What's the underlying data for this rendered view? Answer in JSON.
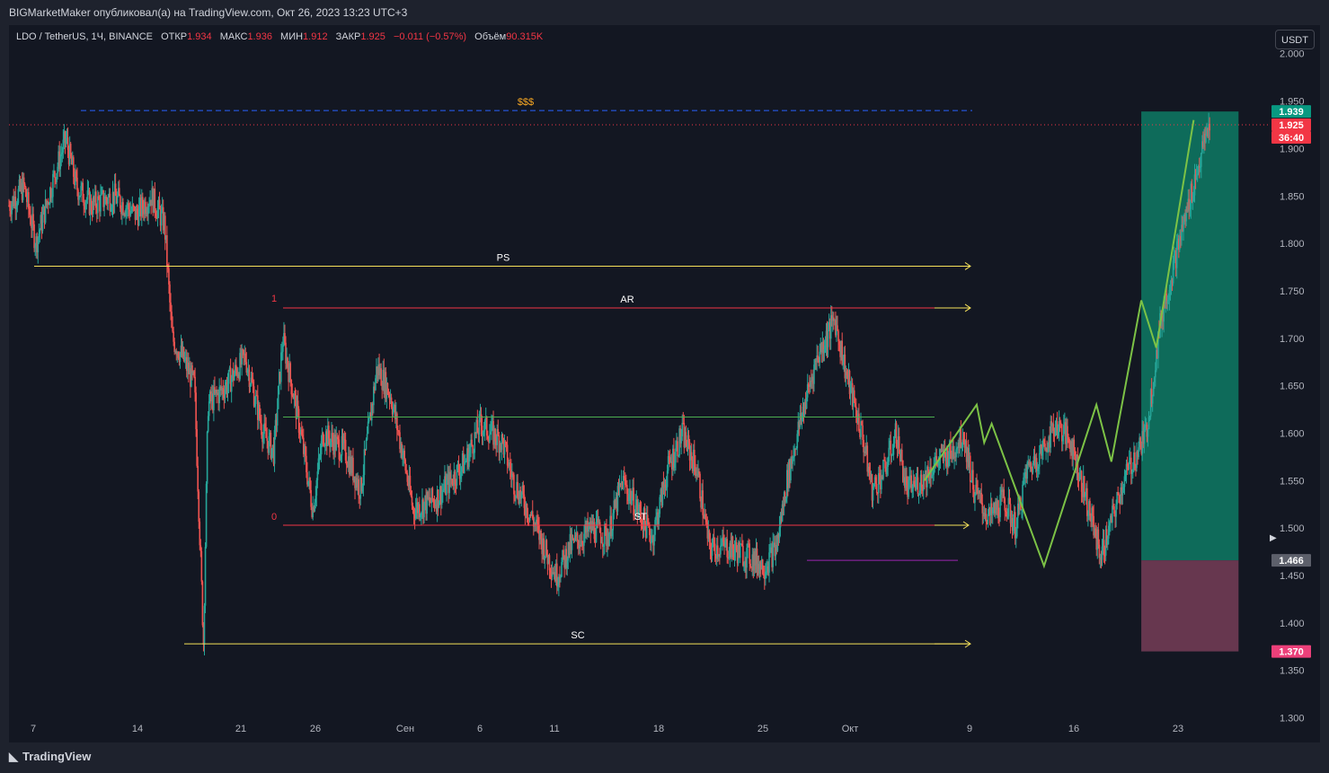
{
  "header": {
    "author_line": "BIGMarketMaker опубликовал(а) на TradingView.com, Окт 26, 2023 13:23 UTC+3"
  },
  "legend": {
    "symbol": "LDO / TetherUS, 1Ч, BINANCE",
    "open_label": "ОТКР",
    "open_value": "1.934",
    "high_label": "МАКС",
    "high_value": "1.936",
    "low_label": "МИН",
    "low_value": "1.912",
    "close_label": "ЗАКР",
    "close_value": "1.925",
    "change": "−0.011 (−0.57%)",
    "volume_label": "Объём",
    "volume_value": "90.315K"
  },
  "currency_button": "USDT",
  "branding": "TradingView",
  "colors": {
    "background": "#131722",
    "up": "#26a69a",
    "down": "#ef5350",
    "yellow_level": "#f5e15a",
    "red_level": "#f23645",
    "green_level": "#4caf50",
    "blue_level": "#2962ff",
    "purple_level": "#9c27b0",
    "projection": "#7cc246",
    "target_zone": "#0e7a64",
    "stop_zone": "#6b3952"
  },
  "chart_data": {
    "type": "candlestick",
    "y_axis": {
      "ticks": [
        "2.000",
        "1.950",
        "1.900",
        "1.850",
        "1.800",
        "1.750",
        "1.700",
        "1.650",
        "1.600",
        "1.550",
        "1.500",
        "1.450",
        "1.400",
        "1.350",
        "1.300"
      ],
      "range": [
        1.275,
        2.03
      ]
    },
    "x_axis": {
      "ticks": [
        "7",
        "14",
        "21",
        "26",
        "Сен",
        "6",
        "11",
        "18",
        "25",
        "Окт",
        "9",
        "16",
        "23"
      ]
    },
    "price_path": [
      {
        "day": 0.0,
        "price": 1.84
      },
      {
        "day": 1.0,
        "price": 1.86
      },
      {
        "day": 1.8,
        "price": 1.8
      },
      {
        "day": 3.0,
        "price": 1.87
      },
      {
        "day": 3.8,
        "price": 1.91
      },
      {
        "day": 4.5,
        "price": 1.86
      },
      {
        "day": 5.5,
        "price": 1.84
      },
      {
        "day": 7.0,
        "price": 1.85
      },
      {
        "day": 8.5,
        "price": 1.83
      },
      {
        "day": 9.5,
        "price": 1.85
      },
      {
        "day": 10.4,
        "price": 1.82
      },
      {
        "day": 10.9,
        "price": 1.7
      },
      {
        "day": 11.6,
        "price": 1.68
      },
      {
        "day": 12.4,
        "price": 1.65
      },
      {
        "day": 13.0,
        "price": 1.38
      },
      {
        "day": 13.3,
        "price": 1.63
      },
      {
        "day": 14.5,
        "price": 1.65
      },
      {
        "day": 15.8,
        "price": 1.68
      },
      {
        "day": 17.0,
        "price": 1.6
      },
      {
        "day": 17.7,
        "price": 1.58
      },
      {
        "day": 18.3,
        "price": 1.7
      },
      {
        "day": 19.5,
        "price": 1.6
      },
      {
        "day": 20.3,
        "price": 1.52
      },
      {
        "day": 21.0,
        "price": 1.6
      },
      {
        "day": 22.5,
        "price": 1.58
      },
      {
        "day": 23.5,
        "price": 1.54
      },
      {
        "day": 24.6,
        "price": 1.67
      },
      {
        "day": 25.5,
        "price": 1.64
      },
      {
        "day": 26.3,
        "price": 1.58
      },
      {
        "day": 27.0,
        "price": 1.52
      },
      {
        "day": 28.5,
        "price": 1.53
      },
      {
        "day": 30.5,
        "price": 1.57
      },
      {
        "day": 31.5,
        "price": 1.61
      },
      {
        "day": 33.0,
        "price": 1.59
      },
      {
        "day": 33.7,
        "price": 1.55
      },
      {
        "day": 35.0,
        "price": 1.51
      },
      {
        "day": 36.0,
        "price": 1.47
      },
      {
        "day": 36.6,
        "price": 1.45
      },
      {
        "day": 37.5,
        "price": 1.48
      },
      {
        "day": 39.0,
        "price": 1.5
      },
      {
        "day": 40.0,
        "price": 1.49
      },
      {
        "day": 41.0,
        "price": 1.55
      },
      {
        "day": 42.0,
        "price": 1.52
      },
      {
        "day": 43.0,
        "price": 1.49
      },
      {
        "day": 44.0,
        "price": 1.56
      },
      {
        "day": 45.0,
        "price": 1.6
      },
      {
        "day": 46.0,
        "price": 1.56
      },
      {
        "day": 46.8,
        "price": 1.48
      },
      {
        "day": 48.0,
        "price": 1.48
      },
      {
        "day": 49.5,
        "price": 1.47
      },
      {
        "day": 50.5,
        "price": 1.46
      },
      {
        "day": 51.3,
        "price": 1.48
      },
      {
        "day": 52.0,
        "price": 1.55
      },
      {
        "day": 53.0,
        "price": 1.62
      },
      {
        "day": 54.0,
        "price": 1.68
      },
      {
        "day": 55.2,
        "price": 1.72
      },
      {
        "day": 56.0,
        "price": 1.66
      },
      {
        "day": 57.0,
        "price": 1.6
      },
      {
        "day": 57.7,
        "price": 1.54
      },
      {
        "day": 58.5,
        "price": 1.56
      },
      {
        "day": 59.3,
        "price": 1.6
      },
      {
        "day": 60.0,
        "price": 1.54
      },
      {
        "day": 61.0,
        "price": 1.55
      },
      {
        "day": 62.0,
        "price": 1.57
      },
      {
        "day": 63.0,
        "price": 1.58
      },
      {
        "day": 63.8,
        "price": 1.6
      },
      {
        "day": 64.5,
        "price": 1.54
      },
      {
        "day": 65.5,
        "price": 1.51
      },
      {
        "day": 66.5,
        "price": 1.53
      },
      {
        "day": 67.3,
        "price": 1.5
      },
      {
        "day": 68.0,
        "price": 1.56
      },
      {
        "day": 69.0,
        "price": 1.58
      },
      {
        "day": 70.0,
        "price": 1.61
      },
      {
        "day": 71.0,
        "price": 1.59
      },
      {
        "day": 72.0,
        "price": 1.53
      },
      {
        "day": 73.0,
        "price": 1.47
      },
      {
        "day": 74.5,
        "price": 1.55
      },
      {
        "day": 76.0,
        "price": 1.6
      },
      {
        "day": 77.0,
        "price": 1.72
      },
      {
        "day": 78.5,
        "price": 1.82
      },
      {
        "day": 79.8,
        "price": 1.9
      },
      {
        "day": 80.3,
        "price": 1.93
      }
    ],
    "levels": [
      {
        "label": "$$$",
        "price": 1.94,
        "color": "#2962ff",
        "style": "dashed"
      },
      {
        "label": "PS",
        "price": 1.776,
        "color": "#f5e15a"
      },
      {
        "label": "AR",
        "price": 1.732,
        "color": "#f23645"
      },
      {
        "label": "ST",
        "price": 1.503,
        "color": "#f23645"
      },
      {
        "label": "SC",
        "price": 1.378,
        "color": "#f5e15a"
      },
      {
        "label": "",
        "price": 1.617,
        "color": "#4caf50"
      },
      {
        "label": "",
        "price": 1.466,
        "color": "#9c27b0"
      }
    ],
    "fib_labels": [
      {
        "label": "1",
        "price": 1.733
      },
      {
        "label": "0",
        "price": 1.503
      }
    ],
    "projection_path": [
      {
        "day": 59.5,
        "price": 1.55
      },
      {
        "day": 63.0,
        "price": 1.63
      },
      {
        "day": 63.5,
        "price": 1.59
      },
      {
        "day": 64.0,
        "price": 1.61
      },
      {
        "day": 67.5,
        "price": 1.46
      },
      {
        "day": 71.0,
        "price": 1.63
      },
      {
        "day": 72.0,
        "price": 1.57
      },
      {
        "day": 74.0,
        "price": 1.74
      },
      {
        "day": 75.0,
        "price": 1.69
      },
      {
        "day": 77.5,
        "price": 1.93
      }
    ],
    "position_tool": {
      "entry": 1.466,
      "target": 1.939,
      "stop": 1.37,
      "start_day": 74.0,
      "end_day": 80.5
    },
    "price_tags": [
      {
        "value": "1.939",
        "bg": "#089981",
        "fg": "#ffffff"
      },
      {
        "value": "1.925",
        "bg": "#f23645",
        "fg": "#ffffff"
      },
      {
        "value": "36:40",
        "bg": "#f23645",
        "fg": "#ffffff"
      },
      {
        "value": "1.466",
        "bg": "#5d606b",
        "fg": "#ffffff"
      },
      {
        "value": "1.370",
        "bg": "#ec407a",
        "fg": "#ffffff"
      }
    ],
    "last_price": 1.925
  }
}
